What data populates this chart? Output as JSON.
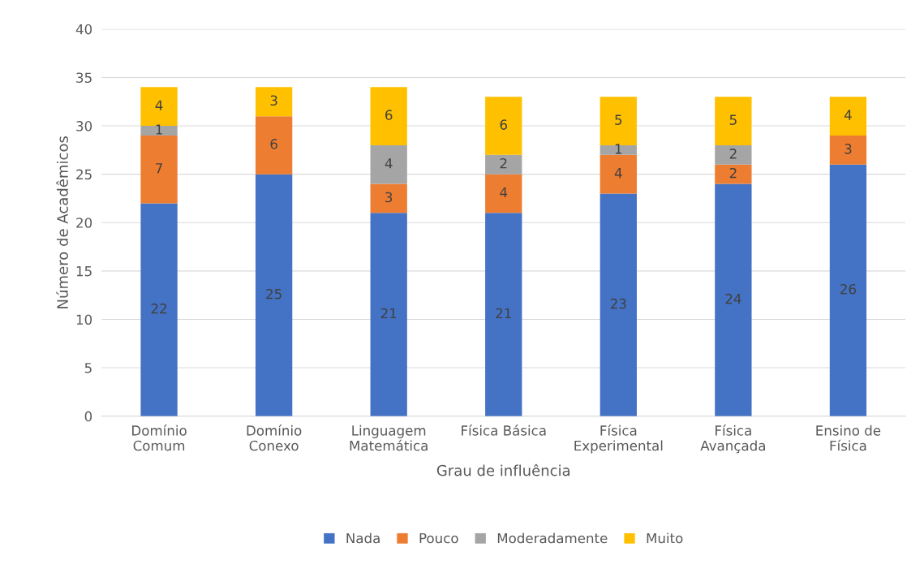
{
  "chart_data": {
    "type": "bar",
    "stacked": true,
    "xlabel": "Grau de influência",
    "ylabel": "Número de Acadêmicos",
    "categories": [
      "Domínio\nComum",
      "Domínio\nConexo",
      "Linguagem\nMatemática",
      "Física Básica",
      "Física\nExperimental",
      "Física\nAvançada",
      "Ensino de\nFísica"
    ],
    "series": [
      {
        "name": "Nada",
        "color": "#4472c4",
        "values": [
          22,
          25,
          21,
          21,
          23,
          24,
          26
        ]
      },
      {
        "name": "Pouco",
        "color": "#ed7d31",
        "values": [
          7,
          6,
          3,
          4,
          4,
          2,
          3
        ]
      },
      {
        "name": "Moderadamente",
        "color": "#a5a5a5",
        "values": [
          1,
          null,
          4,
          2,
          1,
          2,
          null
        ]
      },
      {
        "name": "Muito",
        "color": "#ffc000",
        "values": [
          4,
          3,
          6,
          6,
          5,
          5,
          4
        ]
      }
    ],
    "ylim": [
      0,
      40
    ],
    "yticks": [
      0,
      5,
      10,
      15,
      20,
      25,
      30,
      35,
      40
    ],
    "grid": "y",
    "legend": "bottom",
    "data_labels": true
  }
}
